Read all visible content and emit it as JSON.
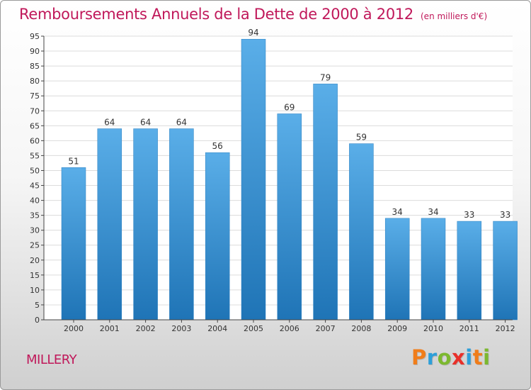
{
  "chart_data": {
    "type": "bar",
    "title": "Remboursements Annuels de la Dette de 2000 à 2012",
    "subtitle": "(en milliers d'€)",
    "categories": [
      "2000",
      "2001",
      "2002",
      "2003",
      "2004",
      "2005",
      "2006",
      "2007",
      "2008",
      "2009",
      "2010",
      "2011",
      "2012"
    ],
    "values": [
      51,
      64,
      64,
      64,
      56,
      94,
      69,
      79,
      59,
      34,
      34,
      33,
      33
    ],
    "ylim": [
      0,
      95
    ],
    "yticks": [
      0,
      5,
      10,
      15,
      20,
      25,
      30,
      35,
      40,
      45,
      50,
      55,
      60,
      65,
      70,
      75,
      80,
      85,
      90,
      95
    ],
    "grid": true,
    "bar_color_top": "#5aaee8",
    "bar_color_bottom": "#1f74b6"
  },
  "footer": {
    "commune": "MILLERY",
    "logo_letters": [
      "P",
      "r",
      "o",
      "x",
      "i",
      "t",
      "i"
    ],
    "logo_colors": [
      "#f07d1a",
      "#2d9fd9",
      "#7cb82f",
      "#e8302a",
      "#2d9fd9",
      "#f07d1a",
      "#7cb82f"
    ]
  }
}
